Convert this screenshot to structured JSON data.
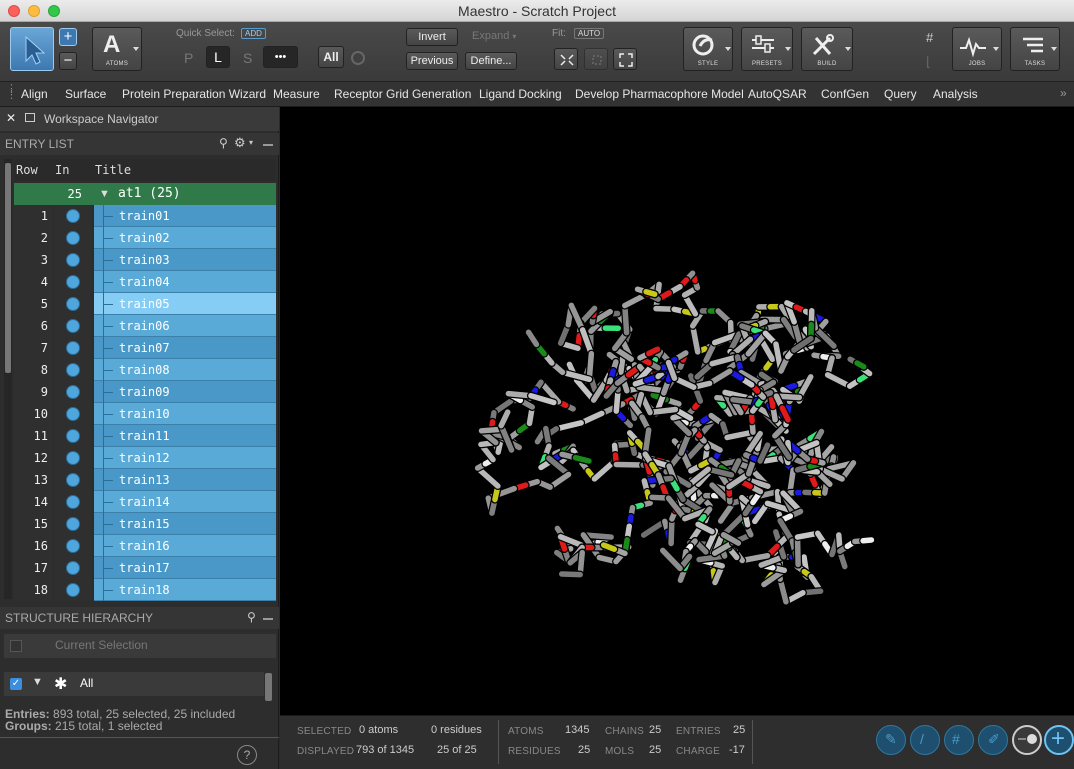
{
  "window": {
    "title": "Maestro - Scratch Project"
  },
  "toolbar": {
    "atoms_label": "ATOMS",
    "quick_select_label": "Quick Select:",
    "add_badge": "ADD",
    "p_label": "P",
    "l_label": "L",
    "s_label": "S",
    "more_label": "•••",
    "all_label": "All",
    "invert_label": "Invert",
    "expand_label": "Expand",
    "previous_label": "Previous",
    "define_label": "Define...",
    "fit_label": "Fit:",
    "auto_badge": "AUTO",
    "style_label": "STYLE",
    "presets_label": "PRESETS",
    "build_label": "BUILD",
    "jobs_label": "JOBS",
    "tasks_label": "TASKS"
  },
  "menu": [
    "Align",
    "Surface",
    "Protein Preparation Wizard",
    "Measure",
    "Receptor Grid Generation",
    "Ligand Docking",
    "Develop Pharmacophore Model",
    "AutoQSAR",
    "ConfGen",
    "Query",
    "Analysis"
  ],
  "navigator": {
    "title": "Workspace Navigator",
    "entry_list_label": "ENTRY LIST",
    "col_row": "Row",
    "col_in": "In",
    "col_title": "Title",
    "group": {
      "count": "25",
      "title": "at1 (25)"
    },
    "rows": [
      {
        "row": "1",
        "title": "train01"
      },
      {
        "row": "2",
        "title": "train02"
      },
      {
        "row": "3",
        "title": "train03"
      },
      {
        "row": "4",
        "title": "train04"
      },
      {
        "row": "5",
        "title": "train05"
      },
      {
        "row": "6",
        "title": "train06"
      },
      {
        "row": "7",
        "title": "train07"
      },
      {
        "row": "8",
        "title": "train08"
      },
      {
        "row": "9",
        "title": "train09"
      },
      {
        "row": "10",
        "title": "train10"
      },
      {
        "row": "11",
        "title": "train11"
      },
      {
        "row": "12",
        "title": "train12"
      },
      {
        "row": "13",
        "title": "train13"
      },
      {
        "row": "14",
        "title": "train14"
      },
      {
        "row": "15",
        "title": "train15"
      },
      {
        "row": "16",
        "title": "train16"
      },
      {
        "row": "17",
        "title": "train17"
      },
      {
        "row": "18",
        "title": "train18"
      }
    ],
    "structure_hierarchy_label": "STRUCTURE HIERARCHY",
    "current_selection": "Current Selection",
    "all_item": "All",
    "entries_label": "Entries:",
    "entries_value": "893 total, 25 selected, 25 included",
    "groups_label": "Groups:",
    "groups_value": "215 total, 1 selected"
  },
  "status": {
    "selected_label": "SELECTED",
    "selected_atoms": "0 atoms",
    "selected_residues": "0 residues",
    "displayed_label": "DISPLAYED",
    "displayed_atoms": "793 of 1345",
    "displayed_residues": "25 of 25",
    "atoms_label": "ATOMS",
    "atoms_value": "1345",
    "residues_label": "RESIDUES",
    "residues_value": "25",
    "chains_label": "CHAINS",
    "chains_value": "25",
    "mols_label": "MOLS",
    "mols_value": "25",
    "entries_label": "ENTRIES",
    "entries_value": "25",
    "charge_label": "CHARGE",
    "charge_value": "-17"
  },
  "colors": {
    "carbon": "#8c8c8c",
    "nitrogen": "#1a1ae0",
    "oxygen": "#e01a1a",
    "chlorine": "#1a8a1a",
    "fluorine": "#3ae07a",
    "sulfur": "#c8c81a",
    "hydrogen": "#eeeeee",
    "selection_blue": "#4a98c8"
  }
}
